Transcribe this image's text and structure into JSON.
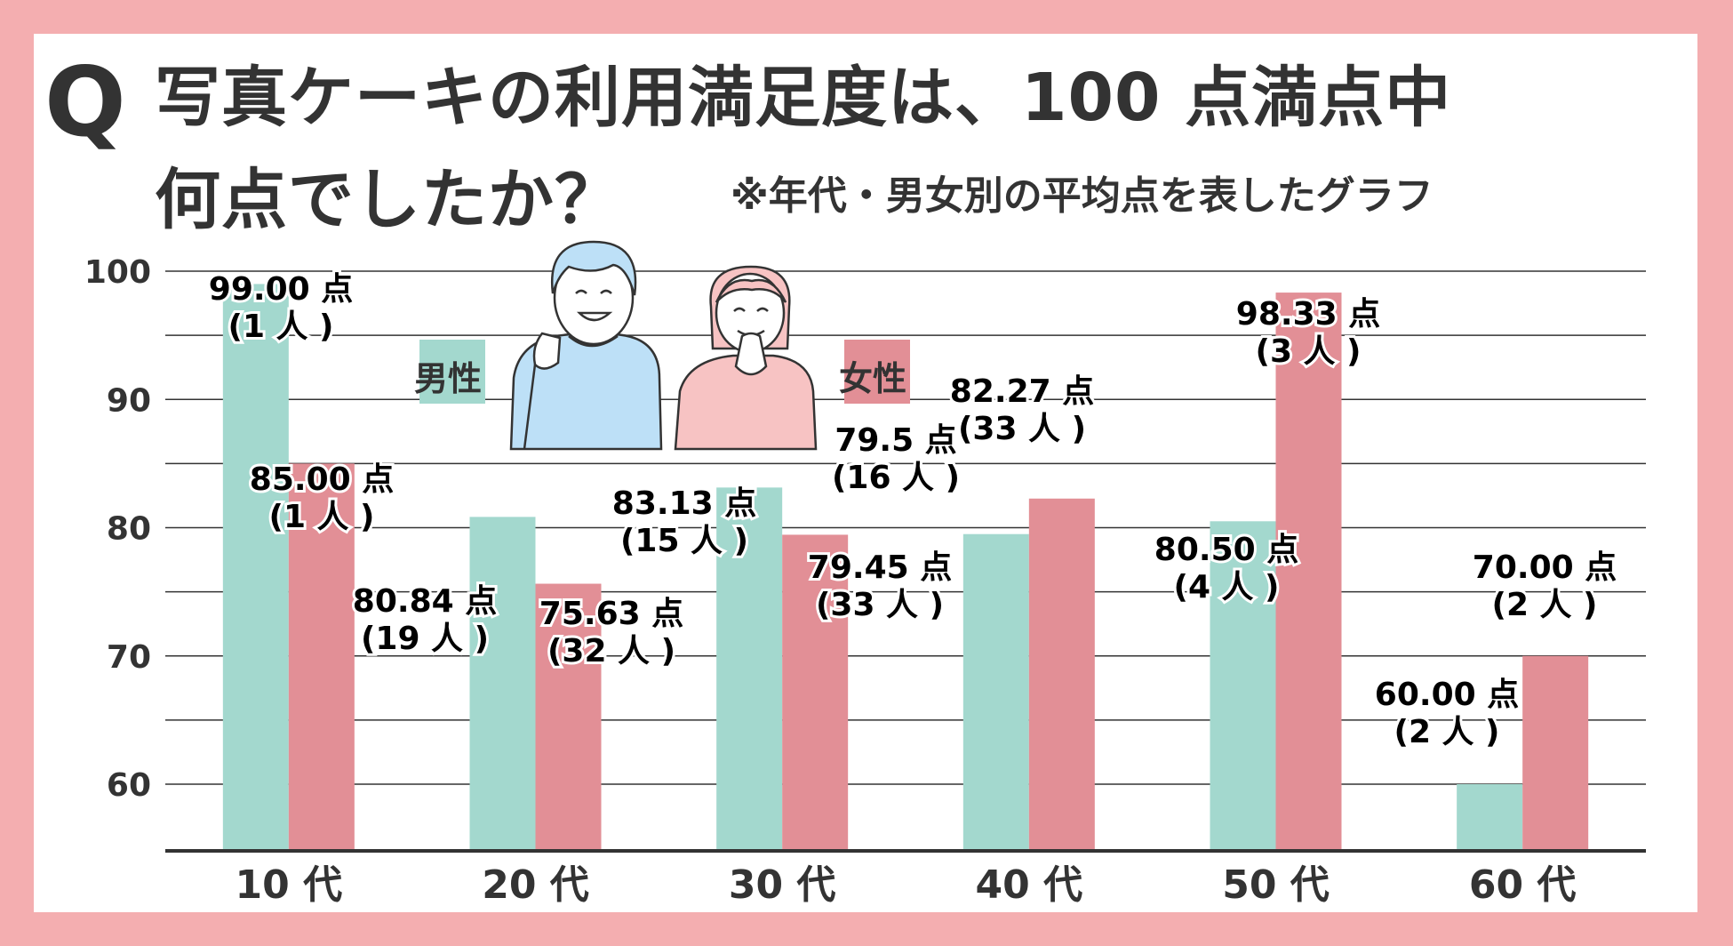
{
  "header": {
    "q_mark": "Q",
    "title_line1": "写真ケーキの利用満足度は、100 点満点中",
    "title_line2": "何点でしたか？",
    "subtitle": "※年代・男女別の平均点を表したグラフ"
  },
  "legend": {
    "male": "男性",
    "female": "女性"
  },
  "colors": {
    "border": "#f4aeb0",
    "male": "#a3d8ce",
    "female": "#e28f96",
    "text": "#333333",
    "grid": "#333333",
    "man_shirt": "#bde0f7",
    "woman_shirt": "#f7c3c3"
  },
  "chart_data": {
    "type": "bar",
    "title": "写真ケーキの利用満足度は、100 点満点中何点でしたか？",
    "subtitle": "※年代・男女別の平均点を表したグラフ",
    "categories": [
      "10 代",
      "20 代",
      "30 代",
      "40 代",
      "50 代",
      "60 代"
    ],
    "ylim": [
      55,
      100
    ],
    "yticks": [
      60,
      70,
      80,
      90,
      100
    ],
    "grid": true,
    "legend_position": "top-center",
    "series": [
      {
        "name": "男性",
        "values": [
          99.0,
          80.84,
          83.13,
          79.5,
          80.5,
          60.0
        ],
        "labels": [
          "99.00 点",
          "80.84 点",
          "83.13 点",
          "79.5 点",
          "80.50 点",
          "60.00 点"
        ],
        "counts": [
          "(1 人 )",
          "(19 人 )",
          "(15 人 )",
          "(16 人 )",
          "(4 人 )",
          "(2 人 )"
        ]
      },
      {
        "name": "女性",
        "values": [
          85.0,
          75.63,
          79.45,
          82.27,
          98.33,
          70.0
        ],
        "labels": [
          "85.00 点",
          "75.63 点",
          "79.45 点",
          "82.27 点",
          "98.33 点",
          "70.00 点"
        ],
        "counts": [
          "(1 人 )",
          "(32 人 )",
          "(33 人 )",
          "(33 人 )",
          "(3 人 )",
          "(2 人 )"
        ]
      }
    ]
  }
}
